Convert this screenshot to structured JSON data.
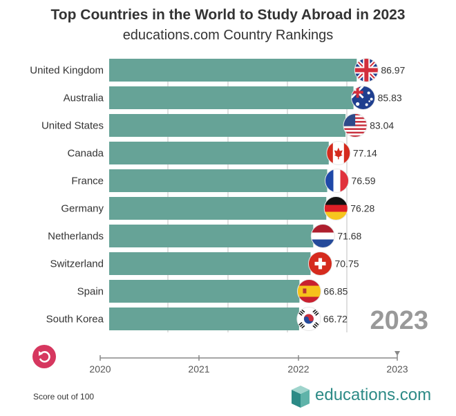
{
  "title": "Top Countries in the World to Study Abroad in 2023",
  "subtitle": "educations.com Country Rankings",
  "footnote": "Score out of 100",
  "brand": "educations.com",
  "colors": {
    "bar": "#66a397",
    "grid": "#bfbfbf",
    "replay": "#d6375f",
    "brand": "#2c8a86",
    "year_label": "#999999"
  },
  "chart_data": {
    "type": "bar",
    "orientation": "horizontal",
    "current_year": "2023",
    "categories": [
      "United Kingdom",
      "Australia",
      "United States",
      "Canada",
      "France",
      "Germany",
      "Netherlands",
      "Switzerland",
      "Spain",
      "South Korea"
    ],
    "values": [
      86.97,
      85.83,
      83.04,
      77.14,
      76.59,
      76.28,
      71.68,
      70.75,
      66.85,
      66.72
    ],
    "value_labels": [
      "86.97",
      "85.83",
      "83.04",
      "77.14",
      "76.59",
      "76.28",
      "71.68",
      "70.75",
      "66.85",
      "66.72"
    ],
    "flag_icons": [
      "uk-flag-icon",
      "australia-flag-icon",
      "us-flag-icon",
      "canada-flag-icon",
      "france-flag-icon",
      "germany-flag-icon",
      "netherlands-flag-icon",
      "switzerland-flag-icon",
      "spain-flag-icon",
      "south-korea-flag-icon"
    ],
    "xlim": [
      0,
      100
    ],
    "timeline": {
      "years": [
        "2020",
        "2021",
        "2022",
        "2023"
      ],
      "selected": "2023"
    },
    "grid": true
  }
}
